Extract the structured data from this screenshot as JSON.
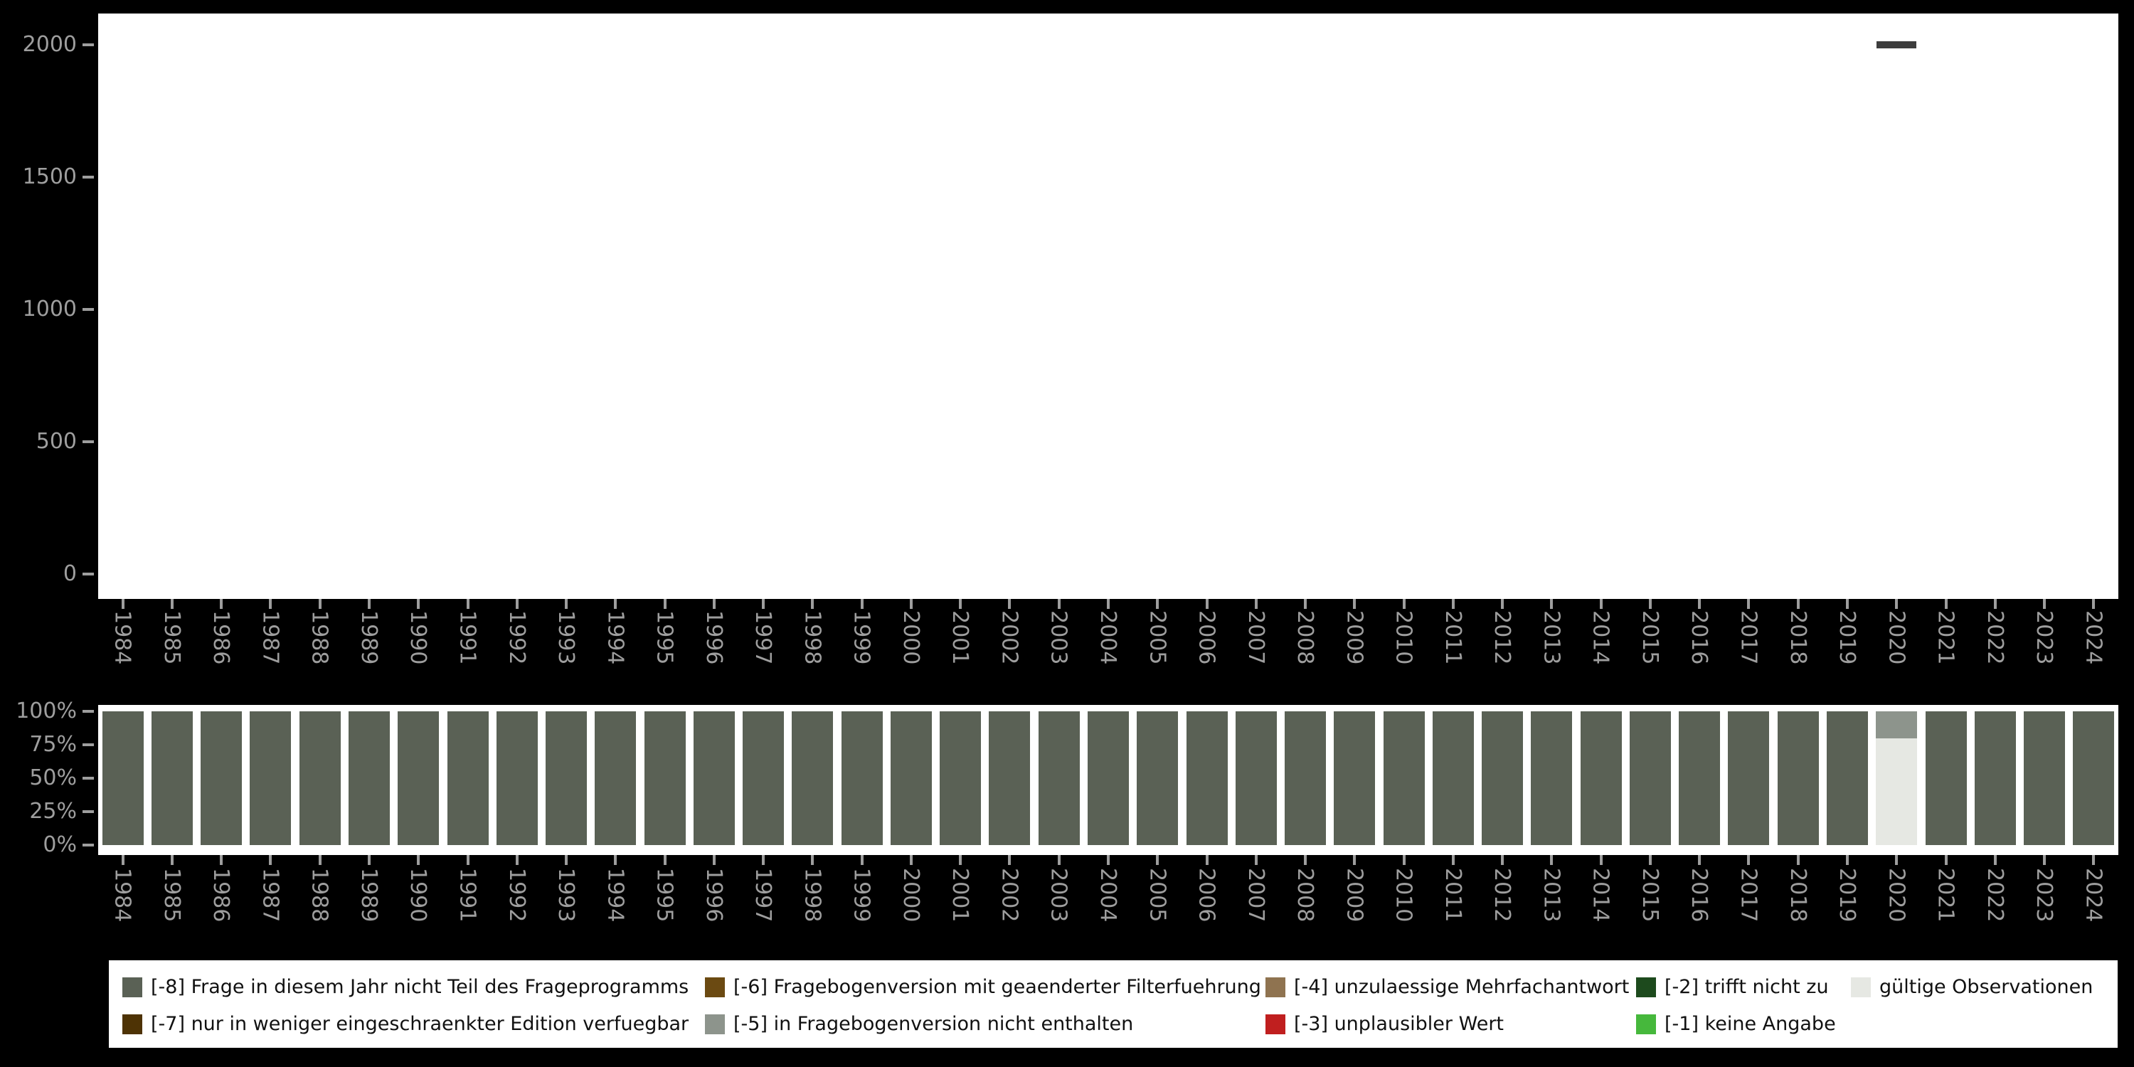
{
  "palette": {
    "-8": "#5a6155",
    "-7": "#4e3305",
    "-6": "#6b4a12",
    "-5": "#8d948c",
    "-4": "#8f7350",
    "-3": "#c01f1f",
    "-2": "#1d4a1d",
    "-1": "#46b83c",
    "valid": "#e6e8e3",
    "bar_dash": "#3d3d3d",
    "axis_text": "#9e9e9e",
    "plot_bg": "#ffffff",
    "page_bg": "#000000"
  },
  "chart_data": [
    {
      "type": "bar",
      "title": "",
      "xlabel": "",
      "ylabel": "",
      "ylim": [
        0,
        2000
      ],
      "grid": false,
      "marker": "dash",
      "yticks": [
        0,
        500,
        1000,
        1500,
        2000
      ],
      "ytick_labels": [
        "0",
        "500",
        "1000",
        "1500",
        "2000"
      ],
      "categories": [
        "1984",
        "1985",
        "1986",
        "1987",
        "1988",
        "1989",
        "1990",
        "1991",
        "1992",
        "1993",
        "1994",
        "1995",
        "1996",
        "1997",
        "1998",
        "1999",
        "2000",
        "2001",
        "2002",
        "2003",
        "2004",
        "2005",
        "2006",
        "2007",
        "2008",
        "2009",
        "2010",
        "2011",
        "2012",
        "2013",
        "2014",
        "2015",
        "2016",
        "2017",
        "2018",
        "2019",
        "2020",
        "2021",
        "2022",
        "2023",
        "2024"
      ],
      "series": [
        {
          "name": "Observationen",
          "values": [
            0,
            0,
            0,
            0,
            0,
            0,
            0,
            0,
            0,
            0,
            0,
            0,
            0,
            0,
            0,
            0,
            0,
            0,
            0,
            0,
            0,
            0,
            0,
            0,
            0,
            0,
            0,
            0,
            0,
            0,
            0,
            0,
            0,
            0,
            0,
            0,
            2000,
            0,
            0,
            0,
            0
          ]
        }
      ]
    },
    {
      "type": "stacked-bar-percent",
      "title": "",
      "xlabel": "",
      "ylabel": "",
      "ylim": [
        0,
        100
      ],
      "grid": false,
      "yticks": [
        0,
        25,
        50,
        75,
        100
      ],
      "ytick_labels": [
        "0%",
        "25%",
        "50%",
        "75%",
        "100%"
      ],
      "categories": [
        "1984",
        "1985",
        "1986",
        "1987",
        "1988",
        "1989",
        "1990",
        "1991",
        "1992",
        "1993",
        "1994",
        "1995",
        "1996",
        "1997",
        "1998",
        "1999",
        "2000",
        "2001",
        "2002",
        "2003",
        "2004",
        "2005",
        "2006",
        "2007",
        "2008",
        "2009",
        "2010",
        "2011",
        "2012",
        "2013",
        "2014",
        "2015",
        "2016",
        "2017",
        "2018",
        "2019",
        "2020",
        "2021",
        "2022",
        "2023",
        "2024"
      ],
      "default_segments": [
        {
          "key": "-8",
          "pct": 100
        }
      ],
      "overrides": {
        "2020": [
          {
            "key": "valid",
            "pct": 80
          },
          {
            "key": "-5",
            "pct": 20
          }
        ]
      }
    }
  ],
  "legend": {
    "rows": [
      [
        {
          "key": "-8",
          "label": "[-8] Frage in diesem Jahr nicht Teil des Frageprogramms"
        },
        {
          "key": "-6",
          "label": "[-6] Fragebogenversion mit geaenderter Filterfuehrung"
        },
        {
          "key": "-4",
          "label": "[-4] unzulaessige Mehrfachantwort"
        },
        {
          "key": "-2",
          "label": "[-2] trifft nicht zu"
        },
        {
          "key": "valid",
          "label": "gültige Observationen"
        }
      ],
      [
        {
          "key": "-7",
          "label": "[-7] nur in weniger eingeschraenkter Edition verfuegbar"
        },
        {
          "key": "-5",
          "label": "[-5] in Fragebogenversion nicht enthalten"
        },
        {
          "key": "-3",
          "label": "[-3] unplausibler Wert"
        },
        {
          "key": "-1",
          "label": "[-1] keine Angabe"
        }
      ]
    ]
  }
}
